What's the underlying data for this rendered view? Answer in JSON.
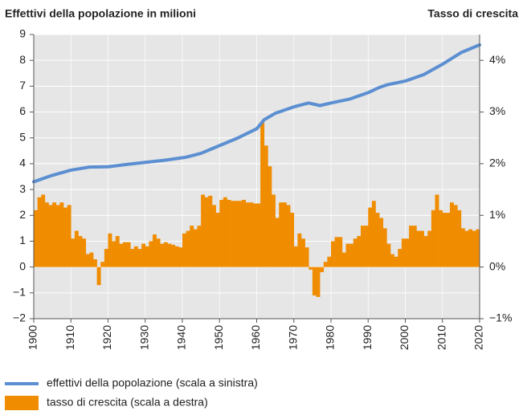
{
  "chart_data": {
    "type": "combo",
    "ylabel": "Effettivi della popolazione in milioni",
    "y2label": "Tasso di crescita",
    "xlim": [
      1900,
      2020
    ],
    "xticks": [
      1900,
      1910,
      1920,
      1930,
      1940,
      1950,
      1960,
      1970,
      1980,
      1990,
      2000,
      2010,
      2020
    ],
    "ylim": [
      -2,
      9
    ],
    "yticks": [
      {
        "value": -2,
        "label": "−2"
      },
      {
        "value": -1,
        "label": "−1"
      },
      0,
      1,
      2,
      3,
      4,
      5,
      6,
      7,
      8,
      9
    ],
    "y2lim": [
      -1,
      4.5
    ],
    "y2ticks": [
      {
        "value": -1,
        "label": "−1%"
      },
      {
        "value": 0,
        "label": "0%"
      },
      {
        "value": 1,
        "label": "1%"
      },
      {
        "value": 2,
        "label": "2%"
      },
      {
        "value": 3,
        "label": "3%"
      },
      {
        "value": 4,
        "label": "4%"
      }
    ],
    "grid": true,
    "series": [
      {
        "name": "effettivi della popolazione (scala a sinistra)",
        "type": "line",
        "color": "#5b8fd1",
        "x": [
          1900,
          1905,
          1910,
          1915,
          1920,
          1925,
          1930,
          1935,
          1941,
          1945,
          1950,
          1955,
          1960,
          1962,
          1965,
          1970,
          1974,
          1977,
          1980,
          1985,
          1990,
          1993,
          1995,
          2000,
          2005,
          2010,
          2015,
          2020
        ],
        "values": [
          3.3,
          3.55,
          3.75,
          3.87,
          3.88,
          3.97,
          4.05,
          4.13,
          4.25,
          4.4,
          4.7,
          5.0,
          5.35,
          5.7,
          5.95,
          6.2,
          6.35,
          6.25,
          6.35,
          6.5,
          6.75,
          6.95,
          7.05,
          7.2,
          7.45,
          7.85,
          8.3,
          8.6
        ]
      },
      {
        "name": "tasso di crescita (scala a destra)",
        "type": "bar",
        "axis": "y2",
        "color": "#f08c00",
        "x": [
          1900,
          1901,
          1902,
          1903,
          1904,
          1905,
          1906,
          1907,
          1908,
          1909,
          1910,
          1911,
          1912,
          1913,
          1914,
          1915,
          1916,
          1917,
          1918,
          1919,
          1920,
          1921,
          1922,
          1923,
          1924,
          1925,
          1926,
          1927,
          1928,
          1929,
          1930,
          1931,
          1932,
          1933,
          1934,
          1935,
          1936,
          1937,
          1938,
          1939,
          1940,
          1941,
          1942,
          1943,
          1944,
          1945,
          1946,
          1947,
          1948,
          1949,
          1950,
          1951,
          1952,
          1953,
          1954,
          1955,
          1956,
          1957,
          1958,
          1959,
          1960,
          1961,
          1962,
          1963,
          1964,
          1965,
          1966,
          1967,
          1968,
          1969,
          1970,
          1971,
          1972,
          1973,
          1974,
          1975,
          1976,
          1977,
          1978,
          1979,
          1980,
          1981,
          1982,
          1983,
          1984,
          1985,
          1986,
          1987,
          1988,
          1989,
          1990,
          1991,
          1992,
          1993,
          1994,
          1995,
          1996,
          1997,
          1998,
          1999,
          2000,
          2001,
          2002,
          2003,
          2004,
          2005,
          2006,
          2007,
          2008,
          2009,
          2010,
          2011,
          2012,
          2013,
          2014,
          2015,
          2016,
          2017,
          2018,
          2019
        ],
        "values": [
          1.1,
          1.35,
          1.4,
          1.25,
          1.2,
          1.25,
          1.2,
          1.25,
          1.15,
          1.2,
          0.55,
          0.7,
          0.6,
          0.55,
          0.25,
          0.28,
          0.15,
          -0.35,
          0.1,
          0.35,
          0.65,
          0.5,
          0.6,
          0.45,
          0.48,
          0.48,
          0.35,
          0.4,
          0.35,
          0.45,
          0.4,
          0.5,
          0.63,
          0.55,
          0.45,
          0.48,
          0.45,
          0.43,
          0.4,
          0.38,
          0.65,
          0.7,
          0.8,
          0.73,
          0.8,
          1.4,
          1.35,
          1.38,
          1.2,
          1.05,
          1.3,
          1.35,
          1.3,
          1.28,
          1.28,
          1.28,
          1.3,
          1.25,
          1.25,
          1.23,
          1.23,
          2.8,
          2.35,
          1.95,
          1.4,
          0.95,
          1.25,
          1.25,
          1.2,
          1.05,
          0.4,
          0.65,
          0.55,
          0.38,
          -0.05,
          -0.55,
          -0.58,
          -0.1,
          0.1,
          0.2,
          0.5,
          0.58,
          0.58,
          0.28,
          0.45,
          0.45,
          0.55,
          0.6,
          0.8,
          0.8,
          1.15,
          1.28,
          1.05,
          0.95,
          0.75,
          0.45,
          0.25,
          0.2,
          0.35,
          0.55,
          0.55,
          0.8,
          0.8,
          0.7,
          0.7,
          0.6,
          0.7,
          1.1,
          1.4,
          1.1,
          1.05,
          1.05,
          1.25,
          1.2,
          1.1,
          0.75,
          0.7,
          0.73,
          0.7,
          0.73
        ]
      }
    ]
  }
}
